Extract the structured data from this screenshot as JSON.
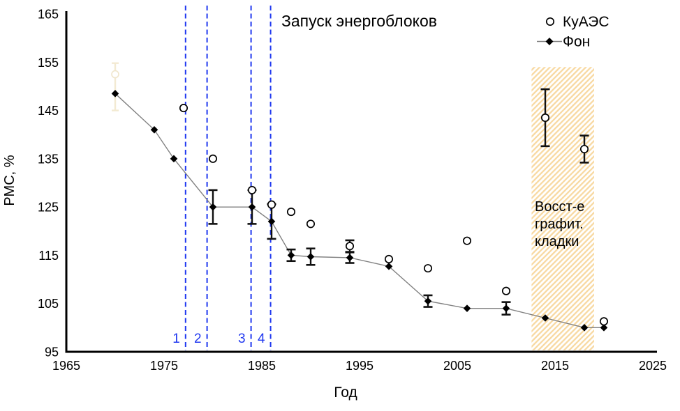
{
  "chart_data": {
    "type": "line+scatter",
    "xlabel": "Год",
    "ylabel": "РМС, %",
    "xlim": [
      1965,
      2025
    ],
    "ylim": [
      95,
      165
    ],
    "x_ticks": [
      1965,
      1975,
      1985,
      1995,
      2005,
      2015,
      2025
    ],
    "y_ticks": [
      165,
      155,
      145,
      135,
      125,
      115,
      105,
      95
    ],
    "grid": false,
    "legend": [
      {
        "label": "КуАЭС",
        "marker": "open-circle"
      },
      {
        "label": "Фон",
        "marker": "line-with-filled-diamond"
      }
    ],
    "series": [
      {
        "name": "КуАЭС",
        "marker": "open-circle",
        "line": false,
        "points": [
          {
            "x": 1977,
            "y": 145.5
          },
          {
            "x": 1980,
            "y": 135
          },
          {
            "x": 1984,
            "y": 128.5
          },
          {
            "x": 1986,
            "y": 125.5
          },
          {
            "x": 1988,
            "y": 124
          },
          {
            "x": 1990,
            "y": 121.5
          },
          {
            "x": 1994,
            "y": 116.9,
            "e": 1.2
          },
          {
            "x": 1998,
            "y": 114.2
          },
          {
            "x": 2002,
            "y": 112.3
          },
          {
            "x": 2006,
            "y": 118
          },
          {
            "x": 2010,
            "y": 107.6
          },
          {
            "x": 2014,
            "y": 143.5,
            "e": 5.9
          },
          {
            "x": 2018,
            "y": 137,
            "e": 2.8
          },
          {
            "x": 2020,
            "y": 101.3
          }
        ]
      },
      {
        "name": "Фон",
        "marker": "filled-diamond",
        "line": true,
        "points": [
          {
            "x": 1970,
            "y": 148.5
          },
          {
            "x": 1974,
            "y": 141
          },
          {
            "x": 1976,
            "y": 135
          },
          {
            "x": 1980,
            "y": 125,
            "e": 3.5
          },
          {
            "x": 1984,
            "y": 125,
            "e": 3.5
          },
          {
            "x": 1986,
            "y": 122,
            "e": 3.6
          },
          {
            "x": 1988,
            "y": 115,
            "e": 1.2
          },
          {
            "x": 1990,
            "y": 114.7,
            "e": 1.7
          },
          {
            "x": 1994,
            "y": 114.5,
            "e": 1.1
          },
          {
            "x": 1998,
            "y": 112.7
          },
          {
            "x": 2002,
            "y": 105.5,
            "e": 1.2
          },
          {
            "x": 2006,
            "y": 104
          },
          {
            "x": 2010,
            "y": 104,
            "e": 1.3
          },
          {
            "x": 2014,
            "y": 102
          },
          {
            "x": 2018,
            "y": 100
          },
          {
            "x": 2020,
            "y": 100
          }
        ]
      }
    ],
    "annotations": {
      "vertical_lines": {
        "label": "Запуск энергоблоков",
        "years": [
          1977.2,
          1979.4,
          1983.9,
          1985.9
        ],
        "numbers": [
          "1",
          "2",
          "3",
          "4"
        ],
        "color": "#2038f0"
      },
      "shaded_region": {
        "label_lines": [
          "Восст-е",
          "графит.",
          "кладки"
        ],
        "x_start": 2012.6,
        "x_end": 2019.0,
        "top_value": 154,
        "stripe_color": "#f8d9a2"
      },
      "faint_artifact_point": {
        "x": 1970,
        "y": 152.5,
        "hi": 154.8,
        "lo": 145.0
      }
    },
    "colors": {
      "fon_line": "#808080",
      "marker": "#000000",
      "error_bar": "#111111",
      "launch_line": "#2038f0"
    }
  }
}
